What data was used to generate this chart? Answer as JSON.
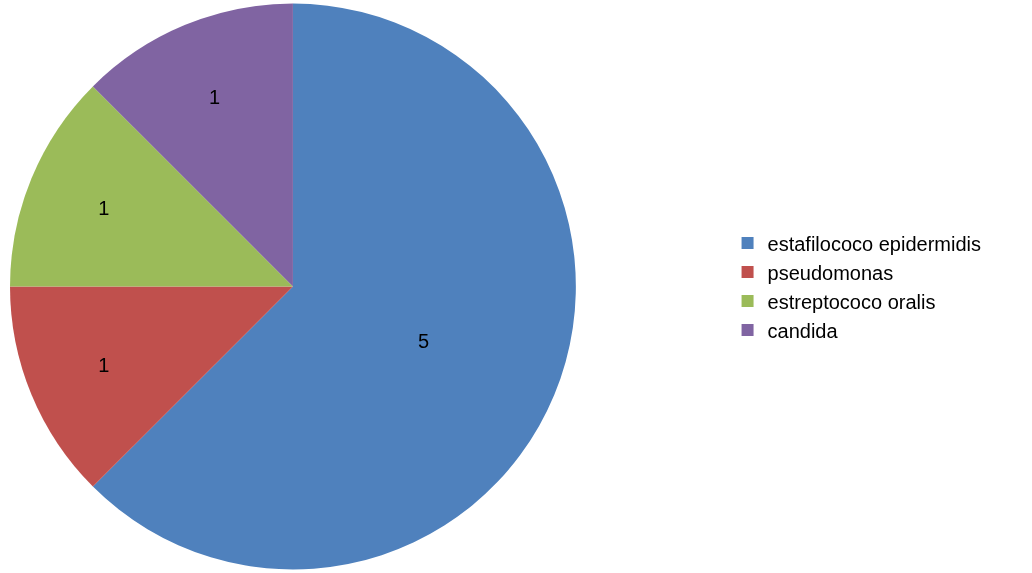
{
  "chart_data": {
    "type": "pie",
    "categories": [
      "estafilococo epidermidis",
      "pseudomonas",
      "estreptococo oralis",
      "candida"
    ],
    "values": [
      5,
      1,
      1,
      1
    ],
    "colors": [
      "#4f81bd",
      "#c0504d",
      "#9bbb59",
      "#8064a2"
    ],
    "data_labels": true,
    "legend": "right"
  }
}
